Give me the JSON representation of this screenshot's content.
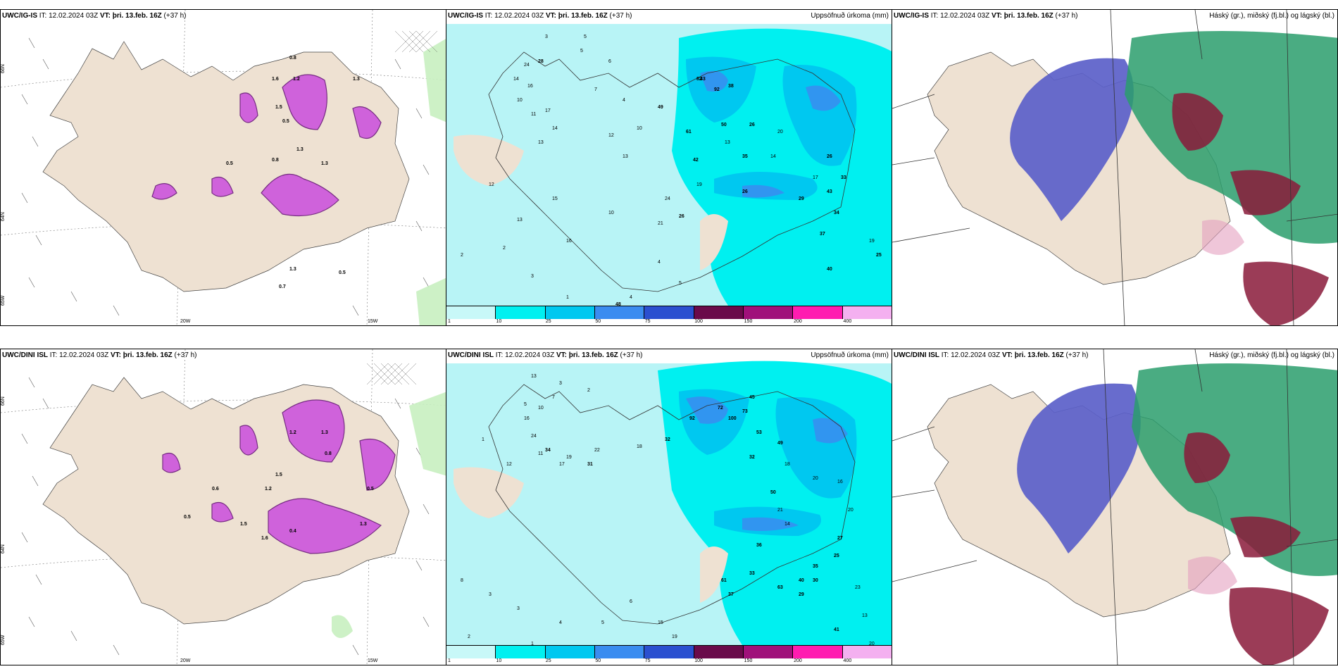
{
  "colors": {
    "land": "#eee1d2",
    "snow_purple": "#cc55dd",
    "rain_green": "#c8f0c0",
    "precip_bg": "#b8f4f6",
    "precip_c10": "#00f0f0",
    "precip_c25": "#00c8f0",
    "precip_c50": "#3a8cf0",
    "blue_clouds": "#5b5fc9",
    "green_clouds": "#2a9d6c",
    "red_clouds": "#8a1a3a"
  },
  "rows": [
    {
      "snow": {
        "header_model": "UWC/IG-IS",
        "header_rest": " IT: 12.02.2024 03Z ",
        "header_vt": "VT: þri. 13.feb. 16Z",
        "header_tail": " (+37 h)",
        "labels": [
          "0.8",
          "1.2",
          "1.6",
          "1.3",
          "1.5",
          "0.5",
          "1.3",
          "0.5",
          "0.8",
          "1.3",
          "0.7",
          "1.3",
          "0.5"
        ],
        "lon_labels": [
          "20W",
          "15W"
        ],
        "lat_labels": [
          "66N",
          "64N",
          "65W"
        ]
      },
      "precip": {
        "header_model": "UWC/IG-IS",
        "header_rest": " IT: 12.02.2024 03Z ",
        "header_vt": "VT: þri. 13.feb. 16Z",
        "header_tail": " (+37 h)",
        "header_right": "Uppsöfnuð úrkoma (mm)",
        "values": [
          "3",
          "5",
          "5",
          "6",
          "24",
          "28",
          "14",
          "16",
          "10",
          "11",
          "17",
          "14",
          "13",
          "7",
          "4",
          "10",
          "12",
          "13",
          "24",
          "26",
          "21",
          "19",
          "42",
          "50",
          "38",
          "43",
          "26",
          "82",
          "92",
          "49",
          "61",
          "13",
          "35",
          "26",
          "14",
          "20",
          "17",
          "26",
          "43",
          "33",
          "29",
          "34",
          "37",
          "40",
          "12",
          "13",
          "2",
          "2",
          "3",
          "1",
          "4",
          "5",
          "4",
          "10",
          "48",
          "15",
          "16",
          "19",
          "25"
        ]
      },
      "clouds": {
        "header_model": "UWC/IG-IS",
        "header_rest": " IT: 12.02.2024 03Z ",
        "header_vt": "VT: þri. 13.feb. 16Z",
        "header_tail": " (+37 h)",
        "header_right": "Háský (gr.), miðský (fj.bl.) og lágský (bl.)"
      }
    },
    {
      "snow": {
        "header_model": "UWC/DINI ISL",
        "header_rest": " IT: 12.02.2024 03Z ",
        "header_vt": "VT: þri. 13.feb. 16Z",
        "header_tail": " (+37 h)",
        "labels": [
          "1.2",
          "1.3",
          "0.8",
          "1.5",
          "0.6",
          "1.2",
          "1.5",
          "0.5",
          "1.6",
          "0.4",
          "1.3",
          "0.5"
        ],
        "lon_labels": [
          "20W",
          "15W"
        ],
        "lat_labels": [
          "66N",
          "64N",
          "65W"
        ]
      },
      "precip": {
        "header_model": "UWC/DINI ISL",
        "header_rest": " IT: 12.02.2024 03Z ",
        "header_vt": "VT: þri. 13.feb. 16Z",
        "header_tail": " (+37 h)",
        "header_right": "Uppsöfnuð úrkoma (mm)",
        "values": [
          "13",
          "3",
          "7",
          "2",
          "5",
          "10",
          "16",
          "24",
          "34",
          "17",
          "1",
          "12",
          "11",
          "19",
          "22",
          "31",
          "18",
          "32",
          "92",
          "72",
          "100",
          "73",
          "45",
          "53",
          "32",
          "49",
          "18",
          "50",
          "21",
          "14",
          "20",
          "16",
          "20",
          "27",
          "25",
          "35",
          "40",
          "29",
          "36",
          "33",
          "63",
          "61",
          "37",
          "30",
          "8",
          "3",
          "3",
          "2",
          "1",
          "4",
          "5",
          "6",
          "15",
          "19",
          "23",
          "13",
          "41",
          "20",
          "20"
        ]
      },
      "clouds": {
        "header_model": "UWC/DINI ISL",
        "header_rest": " IT: 12.02.2024 03Z ",
        "header_vt": "VT: þri. 13.feb. 16Z",
        "header_tail": " (+37 h)",
        "header_right": "Háský (gr.), miðský (fj.bl.) og lágský (bl.)"
      }
    }
  ],
  "colorbar": {
    "ticks": [
      "1",
      "10",
      "25",
      "50",
      "75",
      "100",
      "150",
      "200",
      "400"
    ],
    "colors": [
      "#c8f8f8",
      "#00f0f0",
      "#00c8f0",
      "#3a8cf0",
      "#2a4fd0",
      "#6a0a4a",
      "#a0107a",
      "#ff1cb0",
      "#f4b0f0"
    ]
  }
}
